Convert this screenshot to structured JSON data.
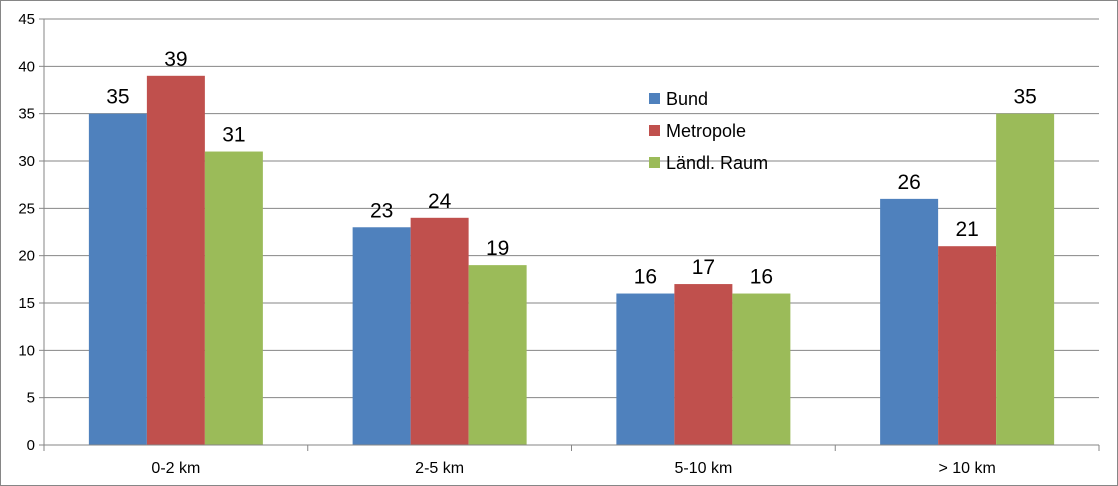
{
  "chart_data": {
    "type": "bar",
    "categories": [
      "0-2 km",
      "2-5 km",
      "5-10 km",
      "> 10 km"
    ],
    "series": [
      {
        "name": "Bund",
        "values": [
          35,
          23,
          16,
          26
        ],
        "color": "#4F81BD"
      },
      {
        "name": "Metropole",
        "values": [
          39,
          24,
          17,
          21
        ],
        "color": "#C0504D"
      },
      {
        "name": "Ländl. Raum",
        "values": [
          31,
          19,
          16,
          35
        ],
        "color": "#9BBB59"
      }
    ],
    "ylim": [
      0,
      45
    ],
    "yticks": [
      0,
      5,
      10,
      15,
      20,
      25,
      30,
      35,
      40,
      45
    ],
    "title": "",
    "xlabel": "",
    "ylabel": "",
    "grid": "horizontal",
    "legend_position": "upper-middle-right",
    "data_labels": true
  }
}
